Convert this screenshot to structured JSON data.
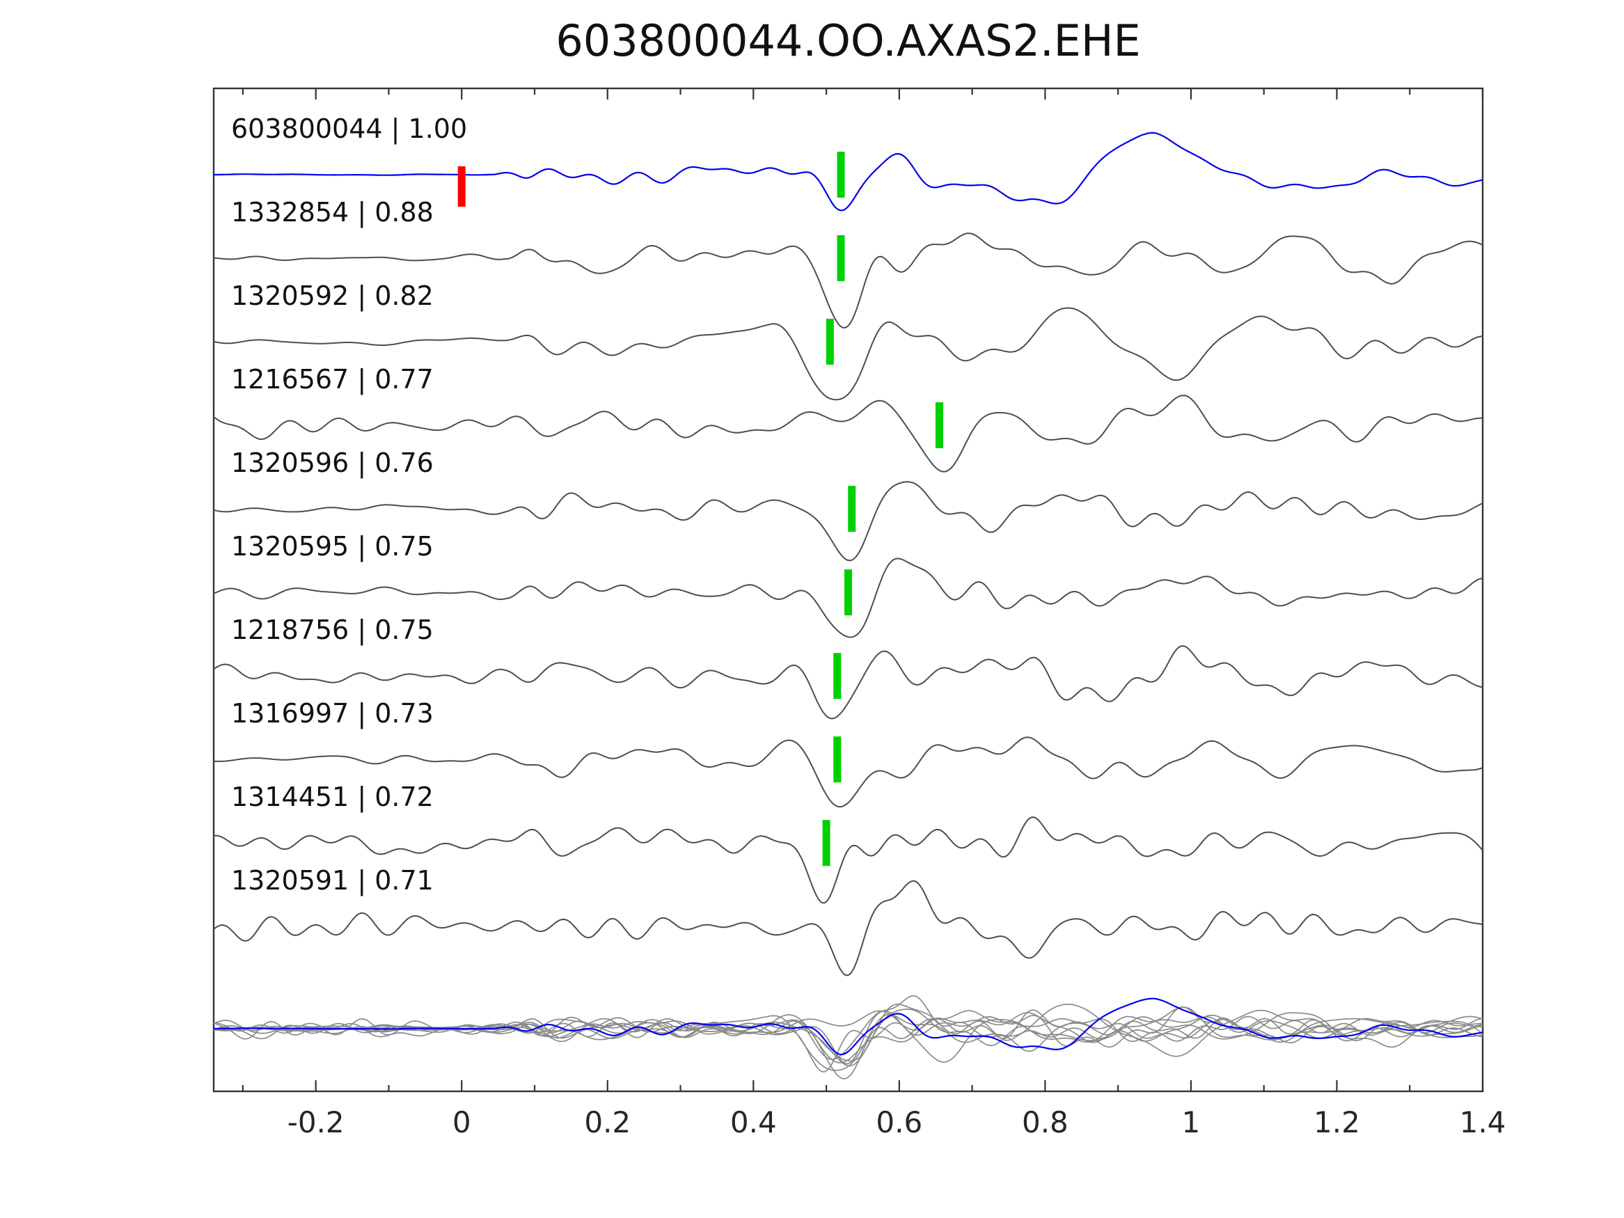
{
  "title": "603800044.OO.AXAS2.EHE",
  "chart_data": {
    "type": "line",
    "title": "603800044.OO.AXAS2.EHE",
    "xlim": [
      -0.34,
      1.4
    ],
    "x_ticks": [
      {
        "v": -0.2,
        "label": "-0.2"
      },
      {
        "v": 0,
        "label": "0"
      },
      {
        "v": 0.2,
        "label": "0.2"
      },
      {
        "v": 0.4,
        "label": "0.4"
      },
      {
        "v": 0.6,
        "label": "0.6"
      },
      {
        "v": 0.8,
        "label": "0.8"
      },
      {
        "v": 1,
        "label": "1"
      },
      {
        "v": 1.2,
        "label": "1.2"
      },
      {
        "v": 1.4,
        "label": "1.4"
      }
    ],
    "grid": false,
    "legend": "none",
    "traces": [
      {
        "id": "603800044",
        "cc": "1.00",
        "label": "603800044 | 1.00",
        "role": "template",
        "pick_green": 0.52,
        "pick_red": 0.0
      },
      {
        "id": "1332854",
        "cc": "0.88",
        "label": "1332854 | 0.88",
        "role": "match",
        "pick_green": 0.52,
        "pick_red": null
      },
      {
        "id": "1320592",
        "cc": "0.82",
        "label": "1320592 | 0.82",
        "role": "match",
        "pick_green": 0.505,
        "pick_red": null
      },
      {
        "id": "1216567",
        "cc": "0.77",
        "label": "1216567 | 0.77",
        "role": "match",
        "pick_green": 0.655,
        "pick_red": null
      },
      {
        "id": "1320596",
        "cc": "0.76",
        "label": "1320596 | 0.76",
        "role": "match",
        "pick_green": 0.535,
        "pick_red": null
      },
      {
        "id": "1320595",
        "cc": "0.75",
        "label": "1320595 | 0.75",
        "role": "match",
        "pick_green": 0.53,
        "pick_red": null
      },
      {
        "id": "1218756",
        "cc": "0.75",
        "label": "1218756 | 0.75",
        "role": "match",
        "pick_green": 0.515,
        "pick_red": null
      },
      {
        "id": "1316997",
        "cc": "0.73",
        "label": "1316997 | 0.73",
        "role": "match",
        "pick_green": 0.515,
        "pick_red": null
      },
      {
        "id": "1314451",
        "cc": "0.72",
        "label": "1314451 | 0.72",
        "role": "match",
        "pick_green": 0.5,
        "pick_red": null
      },
      {
        "id": "1320591",
        "cc": "0.71",
        "label": "1320591 | 0.71",
        "role": "match",
        "pick_green": null,
        "pick_red": null
      }
    ],
    "stack_row": {
      "description": "all matched traces overlaid together with the blue template trace",
      "gray_color": "#8A8A8A",
      "template_color": "#0000EE"
    },
    "colors": {
      "template_blue": "#0000EE",
      "trace_gray": "#4D4D4D",
      "pick_green": "#00D000",
      "pick_red": "#FF0000",
      "frame": "#333333"
    }
  }
}
